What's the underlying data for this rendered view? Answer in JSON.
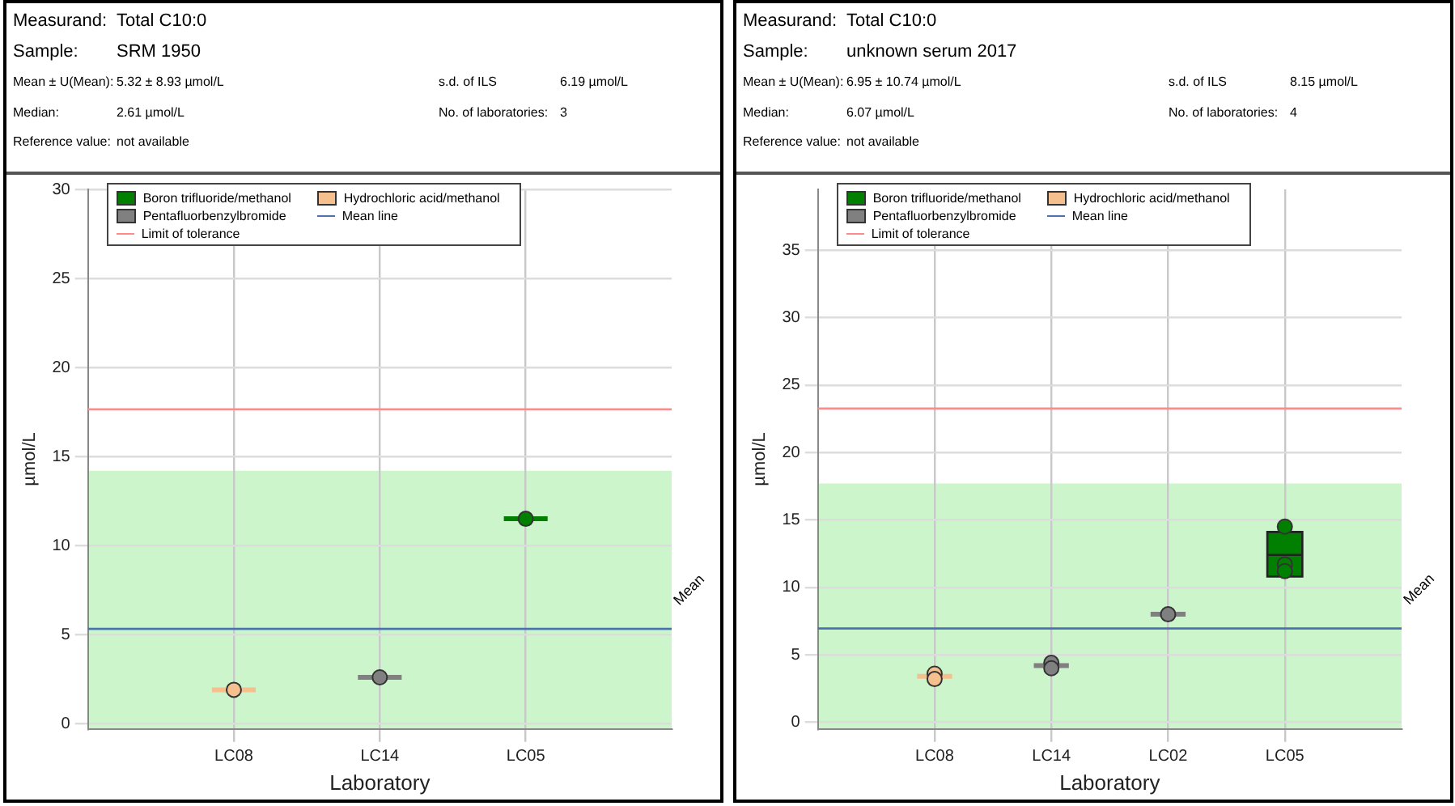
{
  "chart_data": [
    {
      "type": "box",
      "xlabel": "Laboratory",
      "ylabel": "µmol/L",
      "categories": [
        "LC08",
        "LC14",
        "LC05"
      ],
      "ylim": [
        -0.3,
        30
      ],
      "yticks": [
        0,
        5,
        10,
        15,
        20,
        25,
        30
      ],
      "grid": true,
      "legend": "top left",
      "series": [
        {
          "type": "box",
          "name": "Boron trifluoride/methanol",
          "color": "#007f00",
          "boxes": [
            null,
            null,
            {
              "low": 11.5,
              "q1": 11.5,
              "median": 11.5,
              "q3": 11.5,
              "high": 11.5
            }
          ]
        },
        {
          "type": "box",
          "name": "Hydrochloric acid/methanol",
          "color": "#f5c08e",
          "boxes": [
            {
              "low": 1.9,
              "q1": 1.9,
              "median": 1.9,
              "q3": 1.9,
              "high": 1.9
            },
            null,
            null
          ]
        },
        {
          "type": "box",
          "name": "Pentafluorbenzylbromide",
          "color": "#808080",
          "boxes": [
            null,
            {
              "low": 2.6,
              "q1": 2.6,
              "median": 2.6,
              "q3": 2.6,
              "high": 2.6
            },
            null
          ]
        },
        {
          "type": "scatter",
          "x": [
            "LC08",
            "LC14",
            "LC05"
          ],
          "values": [
            1.9,
            2.6,
            11.5
          ],
          "colors": [
            "#f5c08e",
            "#808080",
            "#007f00"
          ]
        }
      ],
      "bands": [
        {
          "axis": "y",
          "from": -0.3,
          "to": 14.2,
          "color": "#ccf5cc"
        }
      ],
      "ref_lines": [
        {
          "axis": "y",
          "value": 5.32,
          "label": "Mean line",
          "color": "#4a72b0"
        },
        {
          "axis": "y",
          "value": 17.65,
          "label": "Limit of tolerance",
          "color": "#ff8a8a"
        }
      ],
      "annotations": [
        "Measurand:",
        "Total C10:0",
        "Sample:",
        "SRM 1950",
        "Mean ± U(Mean):",
        "5.32 ± 8.93 µmol/L",
        "s.d. of ILS",
        "6.19 µmol/L",
        "Median:",
        "2.61 µmol/L",
        "No. of laboratories:",
        "3",
        "Reference value:",
        "not available",
        "Mean"
      ]
    },
    {
      "type": "box",
      "xlabel": "Laboratory",
      "ylabel": "µmol/L",
      "categories": [
        "LC08",
        "LC14",
        "LC02",
        "LC05"
      ],
      "ylim": [
        -0.5,
        39.5
      ],
      "yticks": [
        0,
        5,
        10,
        15,
        20,
        25,
        30,
        35
      ],
      "grid": true,
      "legend": "top left",
      "series": [
        {
          "type": "box",
          "name": "Boron trifluoride/methanol",
          "color": "#007f00",
          "boxes": [
            null,
            null,
            null,
            {
              "low": 10.8,
              "q1": 10.8,
              "median": 12.4,
              "q3": 14.1,
              "high": 14.1
            }
          ]
        },
        {
          "type": "box",
          "name": "Hydrochloric acid/methanol",
          "color": "#f5c08e",
          "boxes": [
            {
              "low": 3.2,
              "q1": 3.2,
              "median": 3.4,
              "q3": 3.5,
              "high": 3.5
            },
            null,
            null,
            null
          ]
        },
        {
          "type": "box",
          "name": "Pentafluorbenzylbromide",
          "color": "#808080",
          "boxes": [
            null,
            {
              "low": 4.1,
              "q1": 4.1,
              "median": 4.2,
              "q3": 4.3,
              "high": 4.3
            },
            {
              "low": 8.0,
              "q1": 8.0,
              "median": 8.0,
              "q3": 8.0,
              "high": 8.0
            },
            null
          ]
        },
        {
          "type": "scatter",
          "x": [
            "LC08",
            "LC08",
            "LC14",
            "LC14",
            "LC02",
            "LC05",
            "LC05",
            "LC05"
          ],
          "values": [
            3.6,
            3.2,
            4.4,
            4.0,
            8.0,
            14.5,
            11.7,
            11.2
          ],
          "colors": [
            "#f5c08e",
            "#f5c08e",
            "#808080",
            "#808080",
            "#808080",
            "#007f00",
            "#007f00",
            "#007f00"
          ]
        }
      ],
      "bands": [
        {
          "axis": "y",
          "from": -0.5,
          "to": 17.7,
          "color": "#ccf5cc"
        }
      ],
      "ref_lines": [
        {
          "axis": "y",
          "value": 6.95,
          "label": "Mean line",
          "color": "#4a72b0"
        },
        {
          "axis": "y",
          "value": 23.25,
          "label": "Limit of tolerance",
          "color": "#ff8a8a"
        }
      ],
      "annotations": [
        "Measurand:",
        "Total C10:0",
        "Sample:",
        "unknown serum 2017",
        "Mean ± U(Mean):",
        "6.95 ± 10.74 µmol/L",
        "s.d. of ILS",
        "8.15 µmol/L",
        "Median:",
        "6.07 µmol/L",
        "No. of laboratories:",
        "4",
        "Reference value:",
        "not available",
        "Mean"
      ]
    }
  ]
}
